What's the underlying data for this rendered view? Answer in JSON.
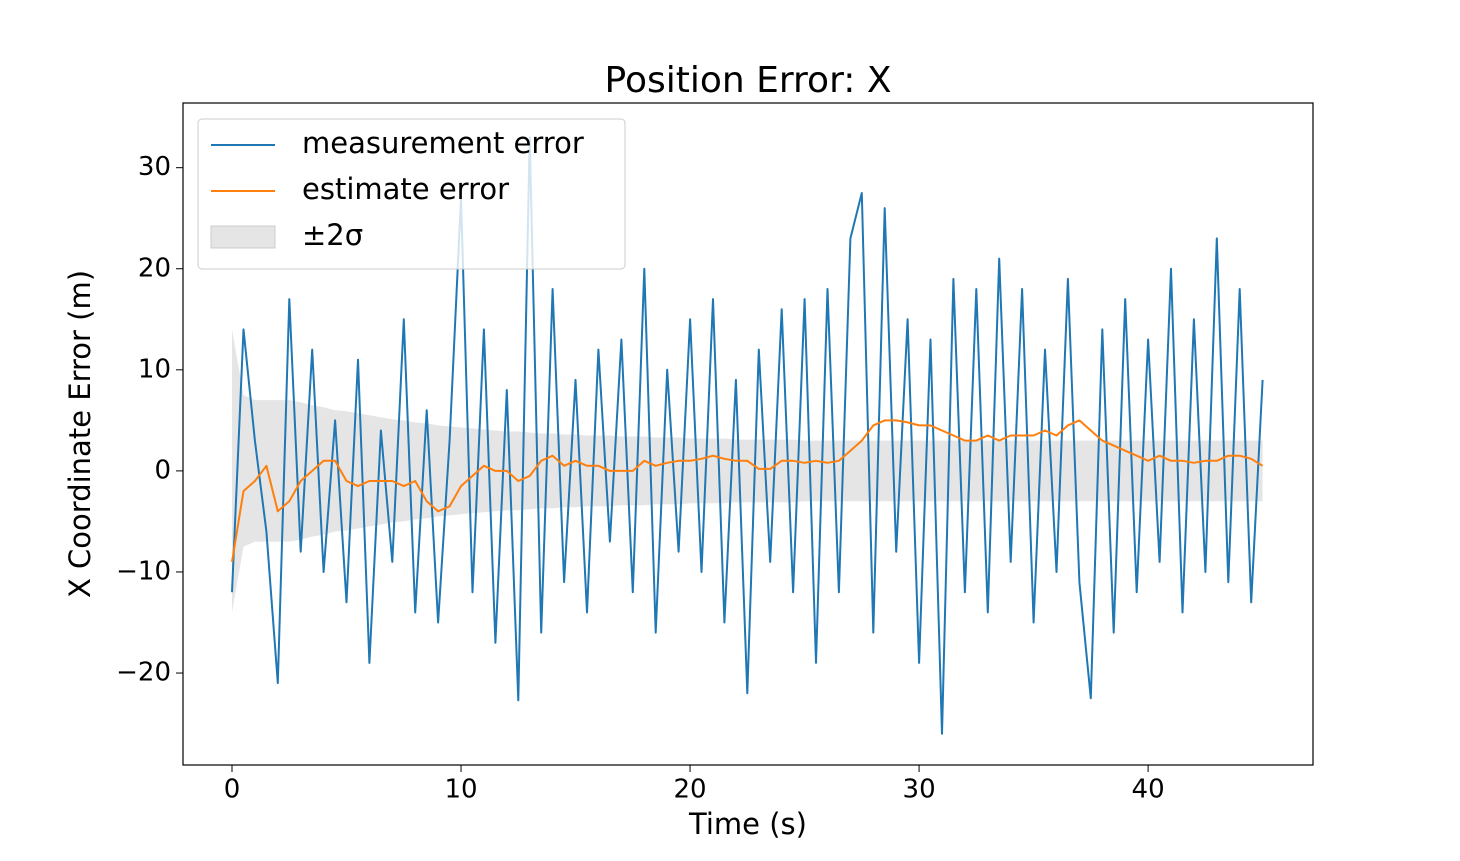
{
  "chart_data": {
    "type": "line",
    "title": "Position Error: X",
    "xlabel": "Time (s)",
    "ylabel": "X Coordinate Error (m)",
    "xlim": [
      -2.14,
      47.2
    ],
    "ylim": [
      -29.1,
      36.4
    ],
    "xticks": [
      0,
      10,
      20,
      30,
      40
    ],
    "yticks": [
      {
        "value": -20,
        "label": "−20"
      },
      {
        "value": -10,
        "label": "−10"
      },
      0,
      10,
      20,
      30
    ],
    "legend": "upper left",
    "x": [
      0,
      0.5,
      1,
      1.5,
      2,
      2.5,
      3,
      3.5,
      4,
      4.5,
      5,
      5.5,
      6,
      6.5,
      7,
      7.5,
      8,
      8.5,
      9,
      9.5,
      10,
      10.5,
      11,
      11.5,
      12,
      12.5,
      13,
      13.5,
      14,
      14.5,
      15,
      15.5,
      16,
      16.5,
      17,
      17.5,
      18,
      18.5,
      19,
      19.5,
      20,
      20.5,
      21,
      21.5,
      22,
      22.5,
      23,
      23.5,
      24,
      24.5,
      25,
      25.5,
      26,
      26.5,
      27,
      27.5,
      28,
      28.5,
      29,
      29.5,
      30,
      30.5,
      31,
      31.5,
      32,
      32.5,
      33,
      33.5,
      34,
      34.5,
      35,
      35.5,
      36,
      36.5,
      37,
      37.5,
      38,
      38.5,
      39,
      39.5,
      40,
      40.5,
      41,
      41.5,
      42,
      42.5,
      43,
      43.5,
      44,
      44.5,
      45
    ],
    "series": [
      {
        "name": "measurement error",
        "color": "#1f77b4",
        "values": [
          -12,
          14,
          3,
          -6,
          -21,
          17,
          -8,
          12,
          -10,
          5,
          -13,
          11,
          -19,
          4,
          -9,
          15,
          -14,
          6,
          -15,
          3,
          27,
          -12,
          14,
          -17,
          8,
          -22.7,
          33,
          -16,
          18,
          -11,
          9,
          -14,
          12,
          -7,
          13,
          -12,
          20,
          -16,
          10,
          -8,
          15,
          -10,
          17,
          -15,
          9,
          -22,
          12,
          -9,
          16,
          -12,
          17,
          -19,
          18,
          -12,
          23,
          27.5,
          -16,
          26,
          -8,
          15,
          -19,
          13,
          -26,
          19,
          -12,
          18,
          -14,
          21,
          -9,
          18,
          -15,
          12,
          -10,
          19,
          -11,
          -22.5,
          14,
          -16,
          17,
          -12,
          13,
          -9,
          20,
          -14,
          15,
          -10,
          23,
          -11,
          18,
          -13,
          9
        ]
      },
      {
        "name": "estimate error",
        "color": "#ff7f0e",
        "values": [
          -9,
          -2,
          -1,
          0.5,
          -4,
          -3,
          -1,
          0,
          1,
          1,
          -1,
          -1.5,
          -1,
          -1,
          -1,
          -1.5,
          -1,
          -3,
          -4,
          -3.5,
          -1.5,
          -0.5,
          0.5,
          0,
          0,
          -1,
          -0.5,
          1,
          1.5,
          0.5,
          1,
          0.5,
          0.5,
          0,
          0,
          0,
          1,
          0.5,
          0.8,
          1,
          1,
          1.2,
          1.5,
          1.2,
          1,
          1,
          0.2,
          0.2,
          1,
          1,
          0.8,
          1,
          0.8,
          1,
          2,
          3,
          4.5,
          5,
          5,
          4.8,
          4.5,
          4.5,
          4,
          3.5,
          3,
          3,
          3.5,
          3,
          3.5,
          3.5,
          3.5,
          4,
          3.5,
          4.5,
          5,
          4,
          3,
          2.5,
          2,
          1.5,
          1,
          1.5,
          1,
          1,
          0.8,
          1,
          1,
          1.5,
          1.5,
          1.2,
          0.5
        ]
      }
    ],
    "band": {
      "name": "±2σ",
      "color": "#e5e5e5",
      "upper": [
        14,
        7.5,
        7,
        7,
        7,
        7,
        6.8,
        6.5,
        6.3,
        6,
        5.9,
        5.7,
        5.5,
        5.3,
        5.1,
        5,
        4.8,
        4.7,
        4.5,
        4.4,
        4.3,
        4.2,
        4.1,
        4,
        3.9,
        3.9,
        3.8,
        3.7,
        3.7,
        3.6,
        3.6,
        3.5,
        3.5,
        3.5,
        3.4,
        3.4,
        3.4,
        3.3,
        3.3,
        3.3,
        3.2,
        3.2,
        3.2,
        3.2,
        3.1,
        3.1,
        3.1,
        3.1,
        3.1,
        3.1,
        3,
        3,
        3,
        3,
        3,
        3,
        3,
        3,
        3,
        3,
        3,
        3,
        3,
        3,
        3,
        3,
        3,
        3,
        3,
        3,
        3,
        3,
        3,
        3,
        3,
        3,
        3,
        3,
        3,
        3,
        3,
        3,
        3,
        3,
        3,
        3,
        3,
        3,
        3,
        3,
        3
      ],
      "lower": [
        -14,
        -7.5,
        -7,
        -7,
        -7,
        -7,
        -6.8,
        -6.5,
        -6.3,
        -6,
        -5.9,
        -5.7,
        -5.5,
        -5.3,
        -5.1,
        -5,
        -4.8,
        -4.7,
        -4.5,
        -4.4,
        -4.3,
        -4.2,
        -4.1,
        -4,
        -3.9,
        -3.9,
        -3.8,
        -3.7,
        -3.7,
        -3.6,
        -3.6,
        -3.5,
        -3.5,
        -3.5,
        -3.4,
        -3.4,
        -3.4,
        -3.3,
        -3.3,
        -3.3,
        -3.2,
        -3.2,
        -3.2,
        -3.2,
        -3.1,
        -3.1,
        -3.1,
        -3.1,
        -3.1,
        -3.1,
        -3,
        -3,
        -3,
        -3,
        -3,
        -3,
        -3,
        -3,
        -3,
        -3,
        -3,
        -3,
        -3,
        -3,
        -3,
        -3,
        -3,
        -3,
        -3,
        -3,
        -3,
        -3,
        -3,
        -3,
        -3,
        -3,
        -3,
        -3,
        -3,
        -3,
        -3,
        -3,
        -3,
        -3,
        -3,
        -3,
        -3,
        -3,
        -3,
        -3,
        -3
      ]
    }
  }
}
